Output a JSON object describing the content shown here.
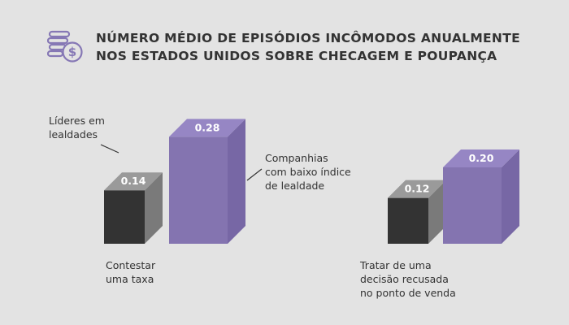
{
  "title_lines": [
    "NÚMERO MÉDIO DE EPISÓDIOS INCÔMODOS ANUALMENTE",
    "NOS ESTADOS UNIDOS SOBRE CHECAGEM E POUPANÇA"
  ],
  "icon": "money-coins-icon",
  "colors": {
    "background": "#e3e3e3",
    "leader_front": "#333333",
    "leader_side": "#7a7a7a",
    "leader_top": "#9a9a9a",
    "low_front": "#8474b0",
    "low_side": "#7767a5",
    "low_top": "#9686c4",
    "accent": "#8678b5"
  },
  "labels": {
    "leaders": [
      "Líderes em",
      "lealdades"
    ],
    "low_loyalty": [
      "Companhias",
      "com baixo índice",
      "de lealdade"
    ],
    "group1": [
      "Contestar",
      "uma taxa"
    ],
    "group2": [
      "Tratar de uma",
      "decisão recusada",
      "no ponto de venda"
    ]
  },
  "chart_data": {
    "type": "bar",
    "title": "Número médio de episódios incômodos anualmente nos Estados Unidos sobre checagem e poupança",
    "categories": [
      "Contestar uma taxa",
      "Tratar de uma decisão recusada no ponto de venda"
    ],
    "series": [
      {
        "name": "Líderes em lealdades",
        "values": [
          0.14,
          0.12
        ],
        "value_labels": [
          "0.14",
          "0.12"
        ]
      },
      {
        "name": "Companhias com baixo índice de lealdade",
        "values": [
          0.28,
          0.2
        ],
        "value_labels": [
          "0.28",
          "0.20"
        ]
      }
    ],
    "xlabel": "",
    "ylabel": "",
    "grid": false,
    "legend": "inline"
  }
}
